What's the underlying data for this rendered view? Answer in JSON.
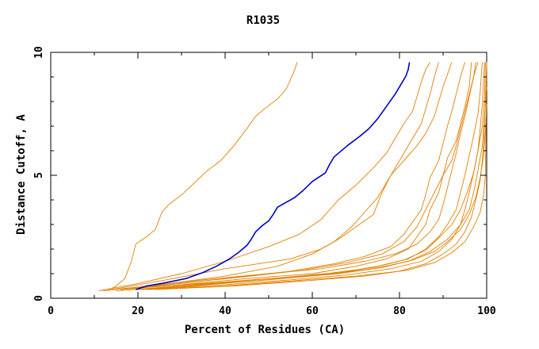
{
  "chart_data": {
    "type": "line",
    "title": "R1035",
    "xlabel": "Percent of Residues (CA)",
    "ylabel": "Distance Cutoff, A",
    "xlim": [
      0,
      100
    ],
    "ylim": [
      0,
      10
    ],
    "x_ticks": [
      0,
      20,
      40,
      60,
      80,
      100
    ],
    "y_ticks": [
      0,
      5,
      10
    ],
    "x_tick_labels": [
      "0",
      "20",
      "40",
      "60",
      "80",
      "100"
    ],
    "y_tick_labels": [
      "0",
      "5",
      "10"
    ],
    "grid": false,
    "legend": "none",
    "colors": {
      "highlight": "#0000cc",
      "others": "#e08000"
    },
    "highlight_series": {
      "points": [
        [
          19.5,
          0.35
        ],
        [
          22,
          0.5
        ],
        [
          26,
          0.62
        ],
        [
          31,
          0.8
        ],
        [
          35,
          1.05
        ],
        [
          38,
          1.3
        ],
        [
          41,
          1.6
        ],
        [
          43,
          1.85
        ],
        [
          45,
          2.15
        ],
        [
          46,
          2.4
        ],
        [
          47,
          2.7
        ],
        [
          48.5,
          2.95
        ],
        [
          50,
          3.15
        ],
        [
          51,
          3.4
        ],
        [
          52,
          3.7
        ],
        [
          54,
          3.9
        ],
        [
          56,
          4.1
        ],
        [
          58,
          4.4
        ],
        [
          60,
          4.75
        ],
        [
          63,
          5.1
        ],
        [
          64,
          5.45
        ],
        [
          65,
          5.75
        ],
        [
          68,
          6.2
        ],
        [
          71,
          6.6
        ],
        [
          73,
          6.9
        ],
        [
          75,
          7.3
        ],
        [
          77,
          7.8
        ],
        [
          79,
          8.3
        ],
        [
          80.5,
          8.75
        ],
        [
          81.5,
          9.05
        ],
        [
          82,
          9.3
        ],
        [
          82.3,
          9.6
        ]
      ]
    },
    "series": [
      {
        "points": [
          [
            13,
            0.3
          ],
          [
            15,
            0.5
          ],
          [
            17,
            0.8
          ],
          [
            18.5,
            1.5
          ],
          [
            19.5,
            2.2
          ],
          [
            22,
            2.5
          ],
          [
            24,
            2.8
          ],
          [
            25.5,
            3.5
          ],
          [
            27,
            3.8
          ],
          [
            30,
            4.2
          ],
          [
            33,
            4.7
          ],
          [
            36,
            5.2
          ],
          [
            39,
            5.6
          ],
          [
            42,
            6.2
          ],
          [
            45,
            6.9
          ],
          [
            47,
            7.4
          ],
          [
            49,
            7.7
          ],
          [
            52,
            8.1
          ],
          [
            54,
            8.5
          ],
          [
            55,
            8.9
          ],
          [
            56,
            9.3
          ],
          [
            56.5,
            9.6
          ]
        ]
      },
      {
        "points": [
          [
            11,
            0.3
          ],
          [
            20,
            0.6
          ],
          [
            30,
            1.0
          ],
          [
            40,
            1.5
          ],
          [
            50,
            2.1
          ],
          [
            57,
            2.6
          ],
          [
            62,
            3.2
          ],
          [
            66,
            4.0
          ],
          [
            70,
            4.6
          ],
          [
            74,
            5.3
          ],
          [
            77,
            5.9
          ],
          [
            79,
            6.5
          ],
          [
            81,
            7.1
          ],
          [
            83,
            7.6
          ],
          [
            84,
            8.2
          ],
          [
            85,
            8.8
          ],
          [
            86,
            9.3
          ],
          [
            87,
            9.6
          ]
        ]
      },
      {
        "points": [
          [
            14,
            0.35
          ],
          [
            25,
            0.7
          ],
          [
            40,
            1.2
          ],
          [
            55,
            1.6
          ],
          [
            62,
            2.0
          ],
          [
            66,
            2.4
          ],
          [
            70,
            2.9
          ],
          [
            74,
            3.4
          ],
          [
            76,
            4.3
          ],
          [
            78,
            5.0
          ],
          [
            80,
            5.4
          ],
          [
            82,
            5.8
          ],
          [
            84,
            6.2
          ],
          [
            86,
            6.7
          ],
          [
            88,
            7.4
          ],
          [
            89,
            8.0
          ],
          [
            90,
            8.6
          ],
          [
            91,
            9.1
          ],
          [
            92,
            9.6
          ]
        ]
      },
      {
        "points": [
          [
            17,
            0.4
          ],
          [
            30,
            0.6
          ],
          [
            45,
            0.9
          ],
          [
            55,
            1.1
          ],
          [
            65,
            1.4
          ],
          [
            72,
            1.7
          ],
          [
            78,
            2.1
          ],
          [
            81,
            2.6
          ],
          [
            83,
            3.1
          ],
          [
            85,
            3.6
          ],
          [
            86,
            4.2
          ],
          [
            87,
            4.9
          ],
          [
            89,
            5.6
          ],
          [
            90,
            6.3
          ],
          [
            91,
            7.0
          ],
          [
            92,
            7.6
          ],
          [
            93,
            8.3
          ],
          [
            94,
            9.0
          ],
          [
            95,
            9.6
          ]
        ]
      },
      {
        "points": [
          [
            16,
            0.35
          ],
          [
            30,
            0.55
          ],
          [
            45,
            0.8
          ],
          [
            60,
            1.0
          ],
          [
            70,
            1.3
          ],
          [
            77,
            1.6
          ],
          [
            82,
            2.0
          ],
          [
            84,
            2.5
          ],
          [
            86,
            3.0
          ],
          [
            87,
            3.6
          ],
          [
            89,
            4.3
          ],
          [
            90,
            5.0
          ],
          [
            92,
            5.6
          ],
          [
            93,
            6.2
          ],
          [
            94,
            6.9
          ],
          [
            95,
            7.6
          ],
          [
            96,
            8.3
          ],
          [
            97,
            9.0
          ],
          [
            97.5,
            9.6
          ]
        ]
      },
      {
        "points": [
          [
            20,
            0.45
          ],
          [
            35,
            0.75
          ],
          [
            50,
            1.0
          ],
          [
            62,
            1.2
          ],
          [
            72,
            1.5
          ],
          [
            79,
            1.8
          ],
          [
            84,
            2.2
          ],
          [
            87,
            2.7
          ],
          [
            89,
            3.2
          ],
          [
            90,
            3.8
          ],
          [
            91,
            4.5
          ],
          [
            92,
            5.2
          ],
          [
            93,
            5.9
          ],
          [
            94,
            6.7
          ],
          [
            95,
            7.4
          ],
          [
            96,
            8.2
          ],
          [
            97,
            9.0
          ],
          [
            98,
            9.6
          ]
        ]
      },
      {
        "points": [
          [
            18,
            0.4
          ],
          [
            35,
            0.6
          ],
          [
            50,
            0.8
          ],
          [
            65,
            1.0
          ],
          [
            75,
            1.3
          ],
          [
            82,
            1.6
          ],
          [
            86,
            2.0
          ],
          [
            89,
            2.5
          ],
          [
            91,
            3.0
          ],
          [
            93,
            3.6
          ],
          [
            94,
            4.3
          ],
          [
            95,
            5.0
          ],
          [
            96,
            5.8
          ],
          [
            97,
            6.6
          ],
          [
            98,
            7.5
          ],
          [
            98.5,
            8.4
          ],
          [
            99,
            9.6
          ]
        ]
      },
      {
        "points": [
          [
            21,
            0.35
          ],
          [
            40,
            0.55
          ],
          [
            55,
            0.75
          ],
          [
            68,
            0.95
          ],
          [
            78,
            1.2
          ],
          [
            85,
            1.5
          ],
          [
            89,
            1.9
          ],
          [
            92,
            2.4
          ],
          [
            94,
            3.0
          ],
          [
            95,
            3.6
          ],
          [
            96,
            4.3
          ],
          [
            97,
            5.1
          ],
          [
            98,
            6.0
          ],
          [
            98.5,
            6.9
          ],
          [
            99,
            7.9
          ],
          [
            99.3,
            8.9
          ],
          [
            99.5,
            9.6
          ]
        ]
      },
      {
        "points": [
          [
            22,
            0.35
          ],
          [
            40,
            0.5
          ],
          [
            55,
            0.7
          ],
          [
            70,
            0.9
          ],
          [
            80,
            1.1
          ],
          [
            86,
            1.4
          ],
          [
            90,
            1.8
          ],
          [
            93,
            2.2
          ],
          [
            95,
            2.7
          ],
          [
            96.5,
            3.3
          ],
          [
            97.5,
            4.0
          ],
          [
            98.5,
            4.8
          ],
          [
            99,
            5.6
          ],
          [
            99.4,
            6.6
          ],
          [
            99.6,
            7.6
          ],
          [
            99.8,
            8.6
          ],
          [
            100,
            9.6
          ]
        ]
      },
      {
        "points": [
          [
            24,
            0.35
          ],
          [
            42,
            0.5
          ],
          [
            58,
            0.7
          ],
          [
            72,
            0.9
          ],
          [
            82,
            1.15
          ],
          [
            88,
            1.45
          ],
          [
            92,
            1.85
          ],
          [
            95,
            2.3
          ],
          [
            97,
            2.9
          ],
          [
            98.5,
            3.5
          ],
          [
            99.3,
            4.2
          ],
          [
            99.7,
            5.0
          ],
          [
            100,
            9.6
          ]
        ]
      },
      {
        "points": [
          [
            15,
            0.3
          ],
          [
            30,
            0.5
          ],
          [
            48,
            0.72
          ],
          [
            62,
            0.95
          ],
          [
            74,
            1.2
          ],
          [
            82,
            1.5
          ],
          [
            87,
            1.9
          ],
          [
            91,
            2.4
          ],
          [
            94,
            3.0
          ],
          [
            96,
            3.6
          ],
          [
            97,
            4.3
          ],
          [
            98,
            5.2
          ],
          [
            99,
            6.2
          ],
          [
            99.5,
            7.4
          ],
          [
            100,
            8.6
          ]
        ]
      },
      {
        "points": [
          [
            12,
            0.3
          ],
          [
            25,
            0.55
          ],
          [
            40,
            0.9
          ],
          [
            52,
            1.3
          ],
          [
            60,
            1.8
          ],
          [
            65,
            2.3
          ],
          [
            69,
            2.9
          ],
          [
            72,
            3.5
          ],
          [
            75,
            4.1
          ],
          [
            77,
            4.7
          ],
          [
            79,
            5.3
          ],
          [
            81,
            5.9
          ],
          [
            83,
            6.5
          ],
          [
            85,
            7.1
          ],
          [
            86,
            7.7
          ],
          [
            87,
            8.3
          ],
          [
            88,
            9.0
          ],
          [
            89,
            9.6
          ]
        ]
      },
      {
        "points": [
          [
            19,
            0.4
          ],
          [
            32,
            0.65
          ],
          [
            46,
            0.9
          ],
          [
            58,
            1.15
          ],
          [
            68,
            1.45
          ],
          [
            76,
            1.8
          ],
          [
            81,
            2.3
          ],
          [
            84,
            2.9
          ],
          [
            86,
            3.6
          ],
          [
            88,
            4.3
          ],
          [
            90,
            5.0
          ],
          [
            91,
            5.7
          ],
          [
            93,
            6.4
          ],
          [
            94,
            7.1
          ],
          [
            95,
            7.8
          ],
          [
            96,
            8.6
          ],
          [
            96.5,
            9.6
          ]
        ]
      },
      {
        "points": [
          [
            23,
            0.4
          ],
          [
            38,
            0.62
          ],
          [
            52,
            0.82
          ],
          [
            64,
            1.02
          ],
          [
            74,
            1.25
          ],
          [
            81,
            1.55
          ],
          [
            86,
            1.95
          ],
          [
            89,
            2.45
          ],
          [
            92,
            3.0
          ],
          [
            94,
            3.6
          ],
          [
            95.5,
            4.3
          ],
          [
            97,
            5.1
          ],
          [
            98,
            6.0
          ],
          [
            99,
            7.0
          ],
          [
            99.5,
            8.2
          ],
          [
            99.7,
            9.6
          ]
        ]
      },
      {
        "points": [
          [
            20,
            0.35
          ],
          [
            36,
            0.55
          ],
          [
            52,
            0.78
          ],
          [
            66,
            1.0
          ],
          [
            76,
            1.25
          ],
          [
            83,
            1.55
          ],
          [
            88,
            1.9
          ],
          [
            91,
            2.3
          ],
          [
            94,
            2.8
          ],
          [
            96,
            3.4
          ],
          [
            97.5,
            4.1
          ],
          [
            98.5,
            4.9
          ],
          [
            99.3,
            5.8
          ],
          [
            99.7,
            6.8
          ],
          [
            100,
            7.9
          ]
        ]
      }
    ]
  }
}
